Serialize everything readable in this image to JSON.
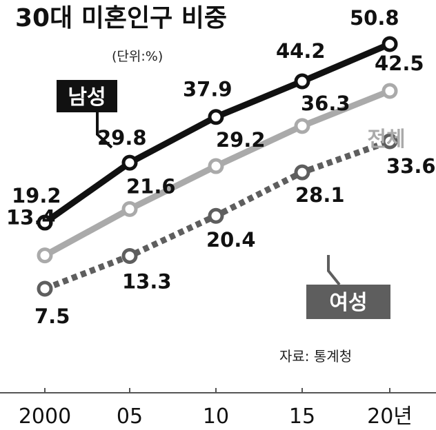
{
  "title": "30대 미혼인구 비중",
  "unit": "(단위:%)",
  "source": "자료: 통계청",
  "chart_data": {
    "type": "line",
    "title": "30대 미혼인구 비중",
    "categories": [
      "2000",
      "05",
      "10",
      "15",
      "20년"
    ],
    "ylim": [
      5,
      55
    ],
    "grid": false,
    "series": [
      {
        "name": "남성",
        "values": [
          19.2,
          29.8,
          37.9,
          44.2,
          50.8
        ],
        "color": "#111111",
        "style": "solid"
      },
      {
        "name": "전체",
        "values": [
          13.4,
          21.6,
          29.2,
          36.3,
          42.5
        ],
        "color": "#aaaaaa",
        "style": "solid"
      },
      {
        "name": "여성",
        "values": [
          7.5,
          13.3,
          20.4,
          28.1,
          33.6
        ],
        "color": "#5e5e5e",
        "style": "dotted"
      }
    ]
  }
}
